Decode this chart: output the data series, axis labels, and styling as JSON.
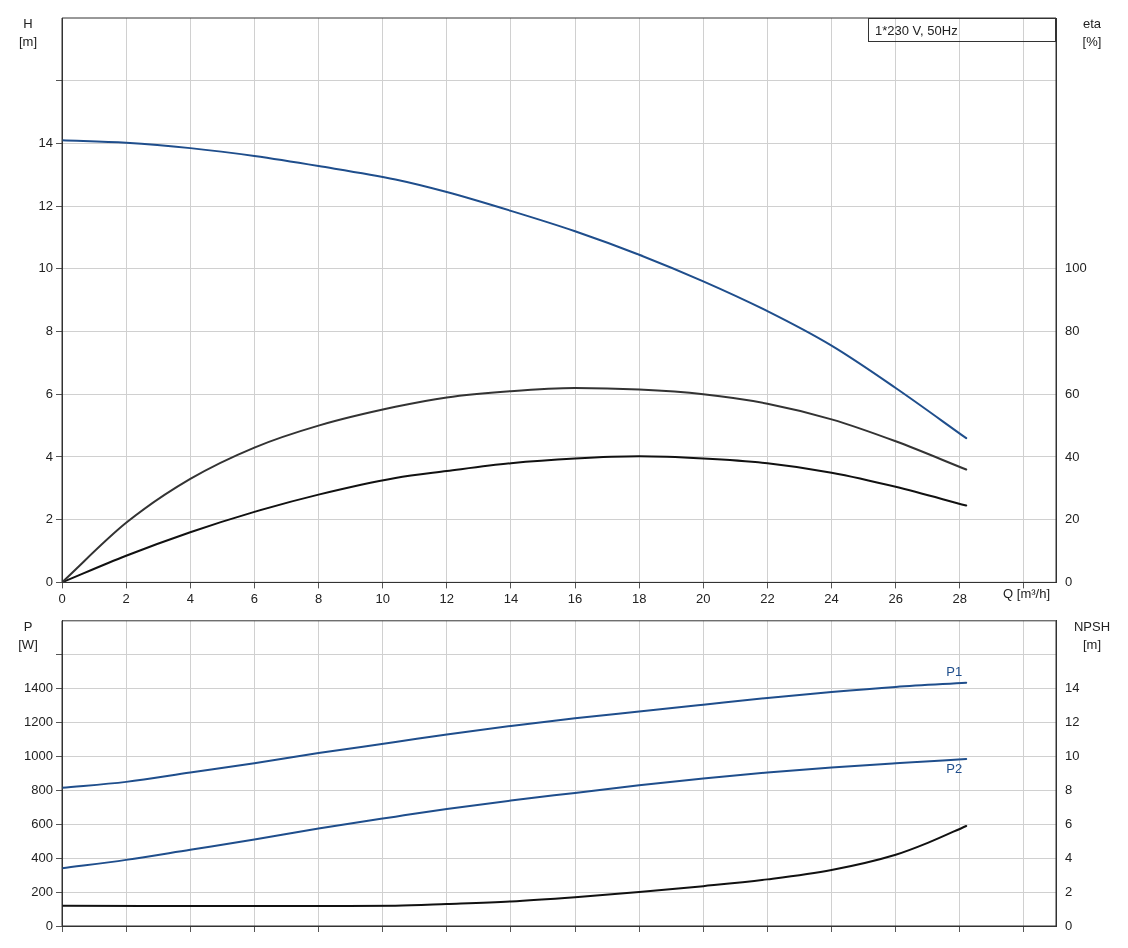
{
  "chart_data": [
    {
      "type": "line",
      "xlabel": "Q [m³/h]",
      "ylabel": "H [m]",
      "y2label": "eta [%]",
      "annotations": [
        "1*230 V, 50Hz"
      ],
      "xlim": [
        0,
        31
      ],
      "xticks": [
        0,
        2,
        4,
        6,
        8,
        10,
        12,
        14,
        16,
        18,
        20,
        22,
        24,
        26,
        28,
        {
          "value": 30,
          "label": null
        }
      ],
      "ylim": [
        0,
        18
      ],
      "yticks": [
        0,
        2,
        4,
        6,
        8,
        10,
        12,
        14,
        {
          "value": 16,
          "label": null
        }
      ],
      "y2lim": [
        0,
        180
      ],
      "y2ticks": [
        0,
        20,
        40,
        60,
        80,
        100
      ],
      "grid": true,
      "legend": false,
      "marker": "none",
      "line_style": "solid",
      "series": [
        {
          "color": "#1f4e8c",
          "x": [
            0,
            2,
            4,
            6,
            8,
            10.4,
            12,
            14,
            16,
            18,
            20,
            22,
            24,
            26,
            28.2
          ],
          "values": [
            14.1,
            14.02,
            13.85,
            13.6,
            13.28,
            12.85,
            12.45,
            11.85,
            11.2,
            10.45,
            9.6,
            8.65,
            7.55,
            6.2,
            4.6
          ]
        },
        {
          "color": "#333333",
          "axis": "y2",
          "x": [
            0,
            2,
            4,
            6,
            8,
            10.4,
            12,
            14,
            16,
            18,
            20,
            22,
            24,
            26,
            28.2
          ],
          "values": [
            0,
            19,
            33,
            43,
            50,
            56,
            59,
            61,
            62,
            61.5,
            60,
            57,
            52,
            45,
            36
          ]
        },
        {
          "color": "#111111",
          "axis": "y2",
          "x": [
            0,
            2,
            4,
            6,
            8,
            10.4,
            12,
            14,
            16,
            18,
            20,
            22,
            24,
            26,
            28.2
          ],
          "values": [
            0,
            8.5,
            16,
            22.5,
            28,
            33.3,
            35.5,
            38,
            39.5,
            40.2,
            39.5,
            38,
            35,
            30.5,
            24.5
          ]
        }
      ]
    },
    {
      "type": "line",
      "ylabel": "P [W]",
      "y2label": "NPSH [m]",
      "tick_labels": "y",
      "xlim": [
        0,
        31
      ],
      "xticks": [
        0,
        2,
        4,
        6,
        8,
        10,
        12,
        14,
        16,
        18,
        20,
        22,
        24,
        26,
        28,
        {
          "value": 30,
          "label": null
        }
      ],
      "ylim": [
        0,
        1800
      ],
      "yticks": [
        0,
        200,
        400,
        600,
        800,
        1000,
        1200,
        1400,
        {
          "value": 1600,
          "label": null
        }
      ],
      "y2lim": [
        0,
        18
      ],
      "y2ticks": [
        0,
        2,
        4,
        6,
        8,
        10,
        12,
        14
      ],
      "grid": true,
      "legend": false,
      "marker": "none",
      "line_style": "solid",
      "series": [
        {
          "name": "P1",
          "color": "#1f4e8c",
          "x": [
            0,
            2,
            4,
            6,
            8,
            10.4,
            12,
            14,
            16,
            18,
            20,
            22,
            24,
            26,
            28.2
          ],
          "values": [
            815,
            850,
            905,
            960,
            1020,
            1085,
            1130,
            1180,
            1225,
            1265,
            1305,
            1345,
            1380,
            1410,
            1435
          ]
        },
        {
          "name": "P2",
          "color": "#1f4e8c",
          "x": [
            0,
            2,
            4,
            6,
            8,
            10.4,
            12,
            14,
            16,
            18,
            20,
            22,
            24,
            26,
            28.2
          ],
          "values": [
            340,
            390,
            450,
            510,
            575,
            645,
            690,
            740,
            785,
            830,
            870,
            905,
            935,
            960,
            985
          ]
        },
        {
          "color": "#111111",
          "axis": "y2",
          "x": [
            0,
            4,
            8,
            10.4,
            12,
            14,
            16,
            18,
            20,
            22,
            24,
            26,
            27,
            28.2
          ],
          "values": [
            1.2,
            1.18,
            1.18,
            1.2,
            1.3,
            1.45,
            1.7,
            2.0,
            2.35,
            2.75,
            3.3,
            4.2,
            4.9,
            5.9
          ]
        }
      ]
    }
  ]
}
